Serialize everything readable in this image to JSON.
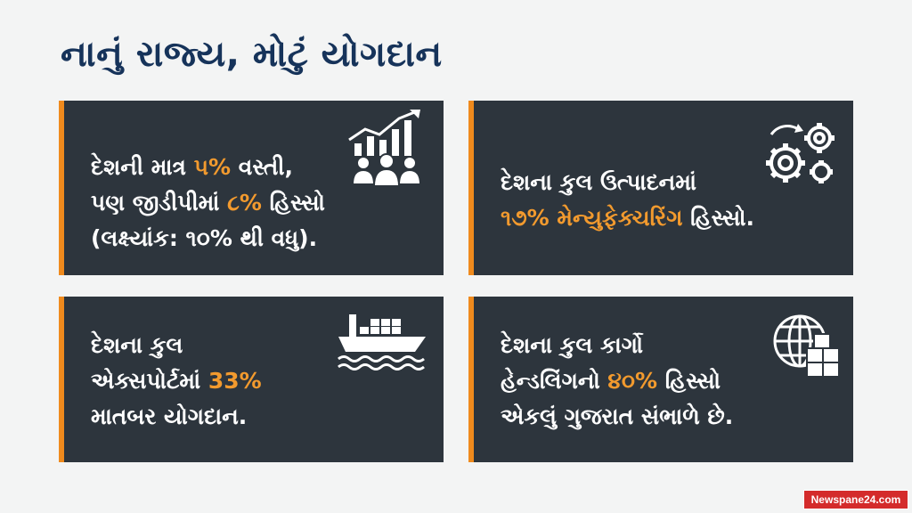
{
  "title": "નાનું રાજ્ય, મોટું યોગદાન",
  "cards": [
    {
      "lines": [
        {
          "pre": "દેશની માત્ર ",
          "hl": "૫%",
          "post": " વસ્તી,"
        },
        {
          "pre": "પણ જીડીપીમાં ",
          "hl": "૮%",
          "post": " હિસ્સો"
        },
        {
          "pre": "(લક્ષ્યાંક: ૧૦% થી વધુ).",
          "hl": "",
          "post": ""
        }
      ],
      "icon": "growth-chart-people-icon"
    },
    {
      "lines": [
        {
          "pre": "દેશના કુલ ઉત્પાદનમાં",
          "hl": "",
          "post": ""
        },
        {
          "pre": "",
          "hl": "૧૭% મેન્યુફેક્ચરિંગ",
          "post": " હિસ્સો."
        }
      ],
      "icon": "gears-icon"
    },
    {
      "lines": [
        {
          "pre": "દેશના કુલ",
          "hl": "",
          "post": ""
        },
        {
          "pre": "એક્સપોર્ટમાં ",
          "hl": "33%",
          "post": ""
        },
        {
          "pre": "માતબર યોગદાન.",
          "hl": "",
          "post": ""
        }
      ],
      "icon": "cargo-ship-icon"
    },
    {
      "lines": [
        {
          "pre": "દેશના કુલ કાર્ગો",
          "hl": "",
          "post": ""
        },
        {
          "pre": "હેન્ડલિંગનો ",
          "hl": "૪૦%",
          "post": " હિસ્સો"
        },
        {
          "pre": "એકલું ગુજરાત સંભાળે છે.",
          "hl": "",
          "post": ""
        }
      ],
      "icon": "globe-boxes-icon"
    }
  ],
  "colors": {
    "accent": "#ef8a1d",
    "highlight": "#f29a2e",
    "card_bg": "#2d353d",
    "title": "#16335a"
  },
  "watermark": "Newspane24.com"
}
